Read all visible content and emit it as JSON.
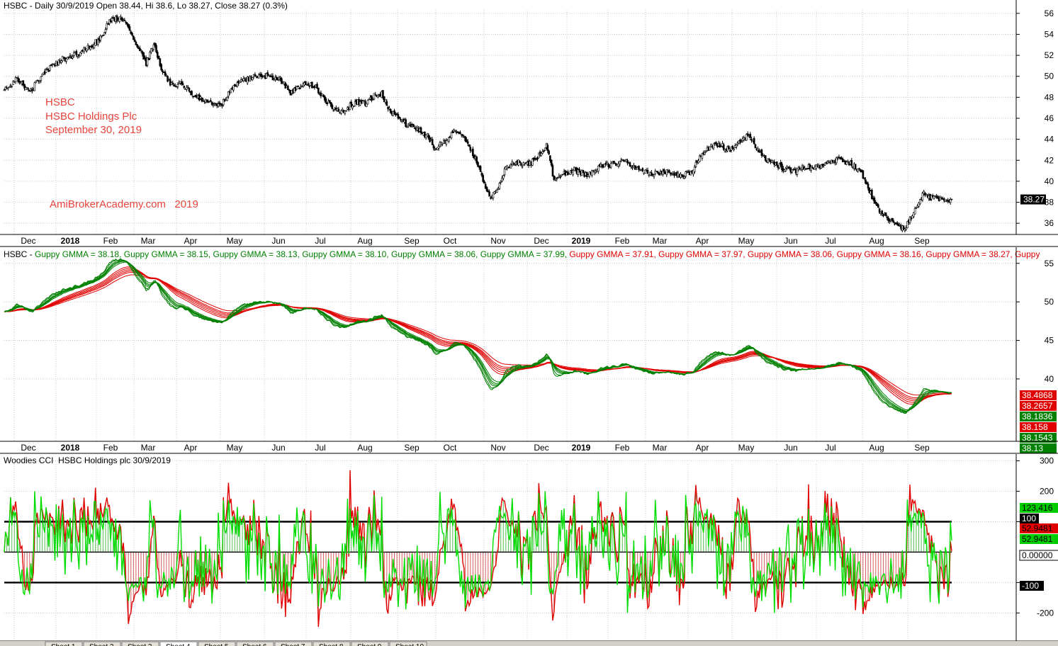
{
  "chart_data": [
    {
      "type": "candlestick",
      "header": "HSBC - Daily 30/9/2019 Open 38.44, Hi 38.6, Lo 38.27, Close 38.27 (0.3%)",
      "watermark": {
        "lines": [
          "HSBC",
          "HSBC Holdings Plc",
          "September 30, 2019"
        ],
        "site": "AmiBrokerAcademy.com   2019"
      },
      "ylim": [
        35,
        57
      ],
      "yticks": [
        36,
        38,
        40,
        42,
        44,
        46,
        48,
        50,
        52,
        54,
        56
      ],
      "last_label": "38.27",
      "last_value": 38.27,
      "months": [
        "Dec",
        "2018",
        "Feb",
        "Mar",
        "Apr",
        "May",
        "Jun",
        "Jul",
        "Aug",
        "Sep",
        "Oct",
        "Nov",
        "Dec",
        "2019",
        "Feb",
        "Mar",
        "Apr",
        "May",
        "Jun",
        "Jul",
        "Aug",
        "Sep"
      ],
      "anchors": [
        [
          0,
          48.6
        ],
        [
          10,
          49.8
        ],
        [
          20,
          48.5
        ],
        [
          30,
          50.2
        ],
        [
          45,
          51.6
        ],
        [
          60,
          52.2
        ],
        [
          75,
          53.5
        ],
        [
          85,
          55.6
        ],
        [
          95,
          55.4
        ],
        [
          105,
          53.0
        ],
        [
          112,
          51.2
        ],
        [
          118,
          53.1
        ],
        [
          125,
          50.4
        ],
        [
          132,
          49.2
        ],
        [
          140,
          49.3
        ],
        [
          150,
          48.2
        ],
        [
          160,
          47.6
        ],
        [
          170,
          47.1
        ],
        [
          180,
          48.8
        ],
        [
          190,
          49.7
        ],
        [
          200,
          50.1
        ],
        [
          210,
          50.0
        ],
        [
          220,
          49.5
        ],
        [
          226,
          48.4
        ],
        [
          232,
          49.0
        ],
        [
          240,
          49.2
        ],
        [
          246,
          48.9
        ],
        [
          252,
          48.1
        ],
        [
          258,
          47.1
        ],
        [
          264,
          46.6
        ],
        [
          270,
          46.9
        ],
        [
          278,
          47.6
        ],
        [
          286,
          47.4
        ],
        [
          292,
          48.2
        ],
        [
          298,
          48.3
        ],
        [
          304,
          46.7
        ],
        [
          310,
          46.3
        ],
        [
          318,
          45.3
        ],
        [
          326,
          44.9
        ],
        [
          334,
          44.3
        ],
        [
          340,
          43.2
        ],
        [
          348,
          43.8
        ],
        [
          356,
          45.0
        ],
        [
          364,
          44.1
        ],
        [
          372,
          42.1
        ],
        [
          380,
          39.4
        ],
        [
          384,
          38.4
        ],
        [
          390,
          39.5
        ],
        [
          396,
          41.4
        ],
        [
          404,
          41.9
        ],
        [
          412,
          41.5
        ],
        [
          420,
          42.1
        ],
        [
          428,
          43.4
        ],
        [
          434,
          40.2
        ],
        [
          442,
          40.7
        ],
        [
          450,
          41.1
        ],
        [
          460,
          40.6
        ],
        [
          470,
          41.4
        ],
        [
          480,
          41.6
        ],
        [
          490,
          41.9
        ],
        [
          497,
          41.4
        ],
        [
          502,
          40.9
        ],
        [
          512,
          40.7
        ],
        [
          522,
          40.9
        ],
        [
          532,
          40.6
        ],
        [
          542,
          40.8
        ],
        [
          548,
          42.1
        ],
        [
          556,
          43.1
        ],
        [
          564,
          43.6
        ],
        [
          570,
          43.1
        ],
        [
          576,
          43.2
        ],
        [
          582,
          43.9
        ],
        [
          588,
          44.6
        ],
        [
          594,
          43.1
        ],
        [
          600,
          42.3
        ],
        [
          608,
          41.6
        ],
        [
          616,
          41.2
        ],
        [
          624,
          41.0
        ],
        [
          632,
          41.3
        ],
        [
          642,
          41.4
        ],
        [
          652,
          41.9
        ],
        [
          660,
          42.0
        ],
        [
          670,
          41.6
        ],
        [
          676,
          40.9
        ],
        [
          682,
          39.4
        ],
        [
          686,
          38.2
        ],
        [
          692,
          36.9
        ],
        [
          698,
          36.3
        ],
        [
          704,
          35.9
        ],
        [
          710,
          35.6
        ],
        [
          714,
          36.1
        ],
        [
          718,
          37.0
        ],
        [
          722,
          38.2
        ],
        [
          726,
          38.8
        ],
        [
          732,
          38.4
        ],
        [
          740,
          38.2
        ],
        [
          748,
          38.4
        ]
      ]
    },
    {
      "type": "line",
      "header": "HSBC - Guppy GMMA = 38.18, Guppy GMMA = 38.15, Guppy GMMA = 38.13, Guppy GMMA = 38.10, Guppy GMMA = 38.06, Guppy GMMA = 37.99, Guppy GMMA = 37.91, Guppy GMMA = 37.97, Guppy GMMA = 38.06, Guppy GMMA = 38.16, Guppy GMMA = 38.27, Guppy",
      "header_parts": [
        {
          "text": "HSBC - ",
          "color": "#000000"
        },
        {
          "text": "Guppy GMMA = 38.18, ",
          "color": "#008000"
        },
        {
          "text": "Guppy GMMA = 38.15, ",
          "color": "#008000"
        },
        {
          "text": "Guppy GMMA = 38.13, ",
          "color": "#008000"
        },
        {
          "text": "Guppy GMMA = 38.10, ",
          "color": "#008000"
        },
        {
          "text": "Guppy GMMA = 38.06, ",
          "color": "#008000"
        },
        {
          "text": "Guppy GMMA = 37.99, ",
          "color": "#008000"
        },
        {
          "text": "Guppy GMMA = 37.91, ",
          "color": "#e00000"
        },
        {
          "text": "Guppy GMMA = 37.97, ",
          "color": "#e00000"
        },
        {
          "text": "Guppy GMMA = 38.06, ",
          "color": "#e00000"
        },
        {
          "text": "Guppy GMMA = 38.16, ",
          "color": "#e00000"
        },
        {
          "text": "Guppy GMMA = 38.27, ",
          "color": "#e00000"
        },
        {
          "text": "Guppy",
          "color": "#e00000"
        }
      ],
      "short_periods": [
        3,
        5,
        8,
        10,
        12,
        15
      ],
      "long_periods": [
        30,
        35,
        40,
        45,
        50,
        60
      ],
      "short_color": "#008000",
      "long_color": "#e00000",
      "ylim": [
        32,
        57
      ],
      "yticks": [
        40,
        45,
        50,
        55
      ],
      "value_labels": [
        {
          "text": "38.4868",
          "color": "#e00000"
        },
        {
          "text": "38.2657",
          "color": "#e00000"
        },
        {
          "text": "38.1836",
          "color": "#008000"
        },
        {
          "text": "38.158",
          "color": "#e00000"
        },
        {
          "text": "38.1543",
          "color": "#008000"
        },
        {
          "text": "38.13",
          "color": "#008000"
        }
      ],
      "months": [
        "Dec",
        "2018",
        "Feb",
        "Mar",
        "Apr",
        "May",
        "Jun",
        "Jul",
        "Aug",
        "Sep",
        "Oct",
        "Nov",
        "Dec",
        "2019",
        "Feb",
        "Mar",
        "Apr",
        "May",
        "Jun",
        "Jul",
        "Aug",
        "Sep"
      ]
    },
    {
      "type": "histogram+line",
      "header": "Woodies CCI  HSBC Holdings plc 30/9/2019",
      "ylim": [
        -290,
        320
      ],
      "yticks": [
        300,
        200,
        100,
        -100,
        -200
      ],
      "ytick_labels": [
        "300",
        "200",
        "",
        "",
        "-200"
      ],
      "levels": [
        100,
        0,
        -100
      ],
      "value_labels": [
        {
          "text": "123.416",
          "value": 123.416,
          "bg": "#00cc00",
          "fg": "#000000"
        },
        {
          "text": "100",
          "value": 100,
          "bg": "#000000",
          "fg": "#ffffff"
        },
        {
          "text": "52.9481",
          "value": 52.9481,
          "bg": "#e00000",
          "fg": "#000000"
        },
        {
          "text": "52.9481",
          "value": 52.9481,
          "bg": "#00cc00",
          "fg": "#000000"
        },
        {
          "text": "0.00000",
          "value": 0,
          "bg": "#ffffff",
          "fg": "#000000"
        },
        {
          "text": "-100",
          "value": -100,
          "bg": "#000000",
          "fg": "#ffffff"
        }
      ],
      "fast_color": "#00dd00",
      "slow_color": "#e00000"
    }
  ],
  "tabs": [
    "Sheet 1",
    "Sheet 2",
    "Sheet 3",
    "Sheet 4",
    "Sheet 5",
    "Sheet 6",
    "Sheet 7",
    "Sheet 8",
    "Sheet 9",
    "Sheet 10"
  ]
}
